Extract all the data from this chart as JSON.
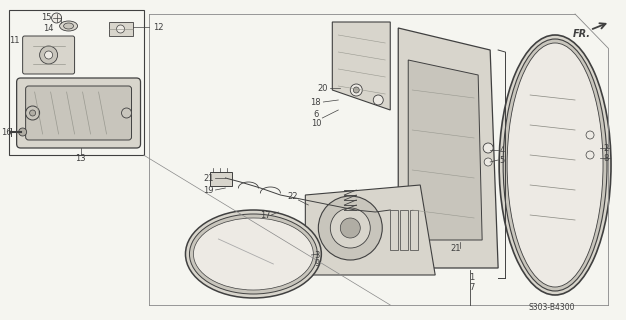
{
  "background_color": "#f5f5f0",
  "diagram_color": "#3a3a3a",
  "diagram_ref": "S303-B4300",
  "fr_label": "FR.",
  "figsize": [
    6.26,
    3.2
  ],
  "dpi": 100,
  "line_color": "#404040",
  "fill_light": "#d8d5cc",
  "fill_mid": "#c8c5bc",
  "fill_dark": "#b0ada4",
  "fill_white": "#edeae4"
}
